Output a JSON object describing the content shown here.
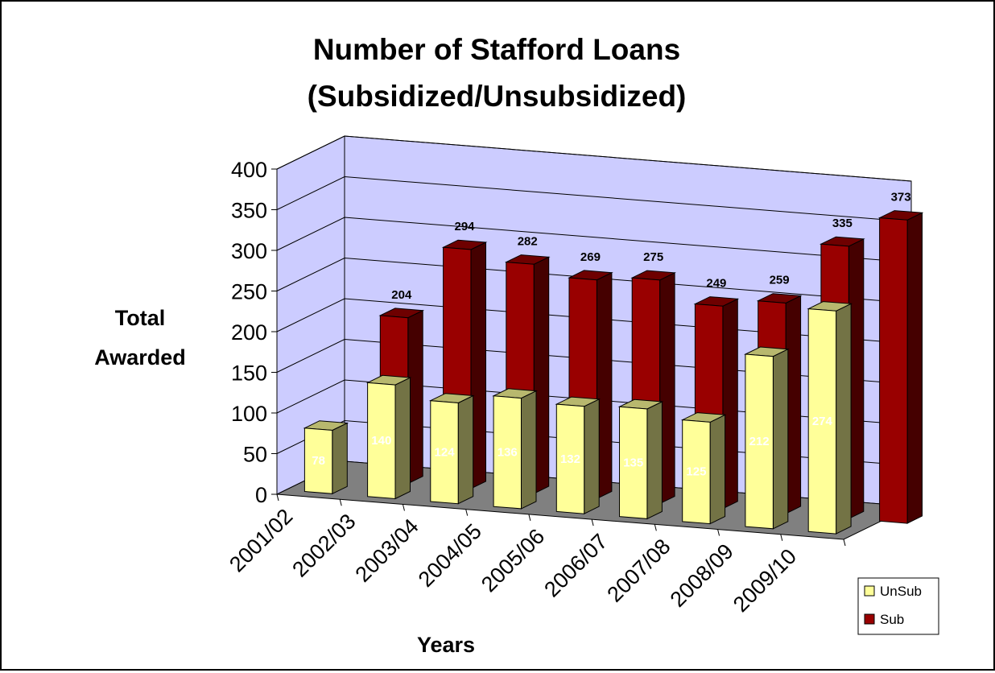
{
  "chart_data": {
    "type": "bar",
    "title_line1": "Number of Stafford Loans",
    "title_line2": "(Subsidized/Unsubsidized)",
    "ylabel_line1": "Total",
    "ylabel_line2": "Awarded",
    "xlabel": "Years",
    "ylim": [
      0,
      400
    ],
    "yticks": [
      "0",
      "50",
      "100",
      "150",
      "200",
      "250",
      "300",
      "350",
      "400"
    ],
    "categories": [
      "2001/02",
      "2002/03",
      "2003/04",
      "2004/05",
      "2005/06",
      "2006/07",
      "2007/08",
      "2008/09",
      "2009/10"
    ],
    "series": [
      {
        "name": "UnSub",
        "values": [
          78,
          140,
          124,
          136,
          132,
          135,
          125,
          212,
          274
        ],
        "labels": [
          "78",
          "140",
          "124",
          "136",
          "132",
          "135",
          "125",
          "212",
          "274"
        ],
        "color": "#ffff99"
      },
      {
        "name": "Sub",
        "values": [
          204,
          294,
          282,
          269,
          275,
          249,
          259,
          335,
          373
        ],
        "labels": [
          "204",
          "294",
          "282",
          "269",
          "275",
          "249",
          "259",
          "335",
          "373"
        ],
        "color": "#990000"
      }
    ],
    "grid": true,
    "legend_position": "bottom-right",
    "wall_color": "#ccccff",
    "floor_color": "#808080"
  }
}
